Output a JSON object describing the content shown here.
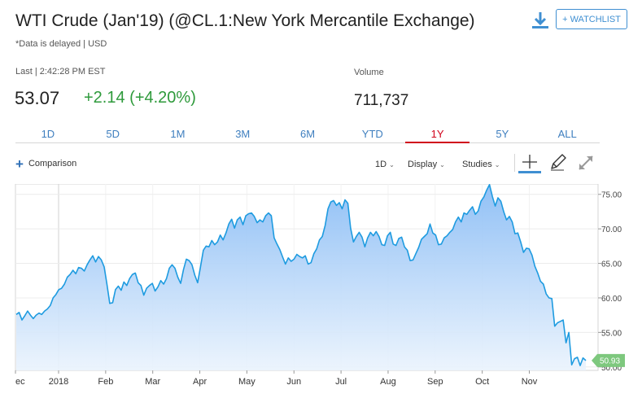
{
  "header": {
    "title": "WTI Crude (Jan'19) (@CL.1:New York Mercantile Exchange)",
    "subtitle": "*Data is delayed | USD",
    "watchlist_label": "+ WATCHLIST",
    "download_icon": "download-icon"
  },
  "quote": {
    "last_label": "Last | 2:42:28 PM EST",
    "price": "53.07",
    "change": "+2.14 (+4.20%)",
    "volume_label": "Volume",
    "volume": "711,737"
  },
  "tabs": [
    {
      "label": "1D"
    },
    {
      "label": "5D"
    },
    {
      "label": "1M"
    },
    {
      "label": "3M"
    },
    {
      "label": "6M"
    },
    {
      "label": "YTD"
    },
    {
      "label": "1Y",
      "active": true
    },
    {
      "label": "5Y"
    },
    {
      "label": "ALL"
    }
  ],
  "toolbar": {
    "comparison_label": "Comparison",
    "interval_label": "1D",
    "display_label": "Display",
    "studies_label": "Studies",
    "icons": [
      "crosshair-icon",
      "draw-pencil-icon",
      "expand-icon"
    ]
  },
  "colors": {
    "accent": "#3f8fd2",
    "positive": "#2e9a3b",
    "active_tab": "#d0021b",
    "line": "#1e9be0",
    "last_badge": "#7ec87e"
  },
  "chart_data": {
    "type": "area",
    "x_ticks": [
      "ec",
      "2018",
      "Feb",
      "Mar",
      "Apr",
      "May",
      "Jun",
      "Jul",
      "Aug",
      "Sep",
      "Oct",
      "Nov"
    ],
    "y_ticks": [
      "75.00",
      "70.00",
      "65.00",
      "60.00",
      "55.00",
      "50.00"
    ],
    "ylim": [
      49.5,
      76.5
    ],
    "last_value_label": "50.93",
    "grid": true,
    "series": [
      {
        "values": [
          57.6,
          57.9,
          56.8,
          57.4,
          58.1,
          57.5,
          57.0,
          57.5,
          57.8,
          57.6,
          58.1,
          58.4,
          58.9,
          60.0,
          60.5,
          61.2,
          61.4,
          62.0,
          63.0,
          63.4,
          64.0,
          63.5,
          64.4,
          64.3,
          63.9,
          64.8,
          65.5,
          66.1,
          65.2,
          66.0,
          65.5,
          64.5,
          62.0,
          59.2,
          59.3,
          61.2,
          61.7,
          61.1,
          62.3,
          61.8,
          62.8,
          63.4,
          63.6,
          62.2,
          61.8,
          60.4,
          61.4,
          61.8,
          62.1,
          61.0,
          61.6,
          62.5,
          62.0,
          62.8,
          64.3,
          64.8,
          64.3,
          63.0,
          62.1,
          64.1,
          65.6,
          65.4,
          64.8,
          63.3,
          62.2,
          64.5,
          66.9,
          67.5,
          67.4,
          68.3,
          67.7,
          68.1,
          69.1,
          68.4,
          69.4,
          70.7,
          71.4,
          70.1,
          71.3,
          71.7,
          70.6,
          71.9,
          72.2,
          72.3,
          71.8,
          70.9,
          71.3,
          71.0,
          71.9,
          72.3,
          71.9,
          68.7,
          67.8,
          67.0,
          65.9,
          64.9,
          65.8,
          65.3,
          65.6,
          66.3,
          66.0,
          65.8,
          66.1,
          64.9,
          65.1,
          66.4,
          67.1,
          68.4,
          68.9,
          70.5,
          72.9,
          73.9,
          74.1,
          73.4,
          73.8,
          72.9,
          74.2,
          73.7,
          70.1,
          68.1,
          68.9,
          69.5,
          68.8,
          67.4,
          68.7,
          69.5,
          69.0,
          69.6,
          68.9,
          67.7,
          67.6,
          69.0,
          69.5,
          67.8,
          67.6,
          68.6,
          68.8,
          67.4,
          66.9,
          65.4,
          65.5,
          66.4,
          67.3,
          68.5,
          68.9,
          69.3,
          70.7,
          69.4,
          69.1,
          67.7,
          67.8,
          68.7,
          69.0,
          69.5,
          69.9,
          71.0,
          71.7,
          71.0,
          72.3,
          72.1,
          72.7,
          73.2,
          72.1,
          72.6,
          74.0,
          74.6,
          75.6,
          76.4,
          74.7,
          73.3,
          74.5,
          74.0,
          72.5,
          71.3,
          71.8,
          71.0,
          69.3,
          69.4,
          68.1,
          66.6,
          67.2,
          67.1,
          66.2,
          64.6,
          63.6,
          62.4,
          62.0,
          60.6,
          60.0,
          59.9,
          55.9,
          56.4,
          56.6,
          56.8,
          53.5,
          55.0,
          50.3,
          51.2,
          51.4,
          50.2,
          51.3,
          50.93
        ]
      }
    ]
  }
}
